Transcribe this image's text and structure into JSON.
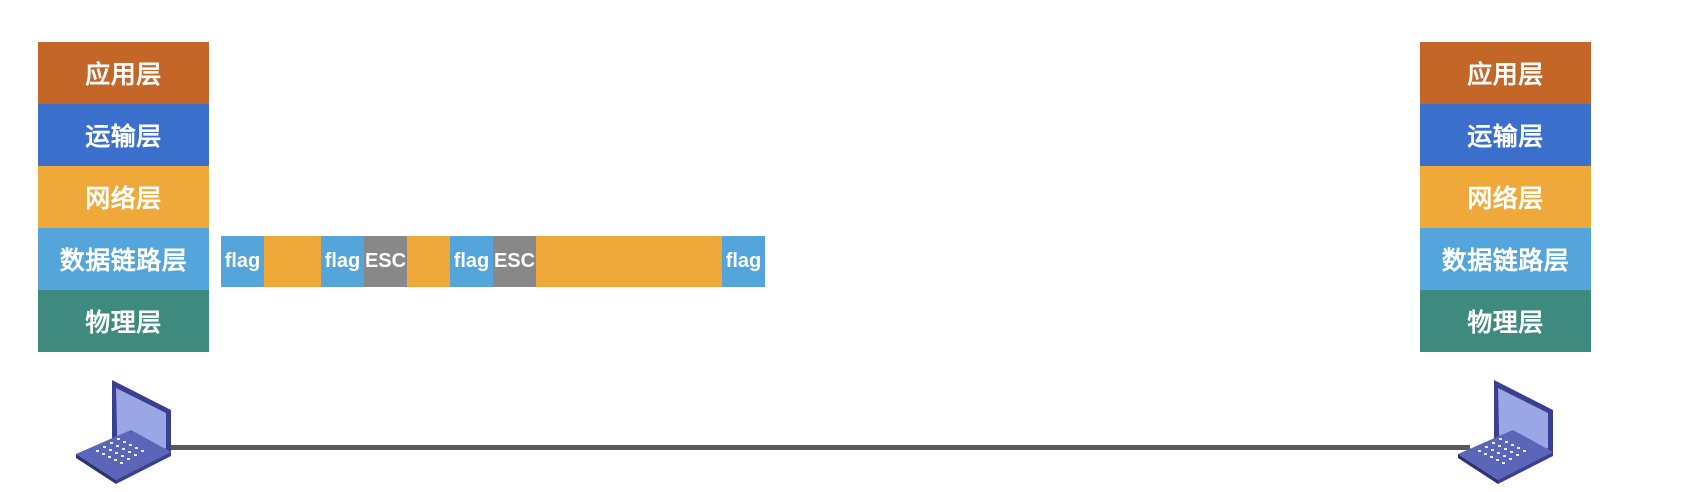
{
  "left_stack": {
    "layers": [
      "应用层",
      "运输层",
      "网络层",
      "数据链路层",
      "物理层"
    ]
  },
  "right_stack": {
    "layers": [
      "应用层",
      "运输层",
      "网络层",
      "数据链路层",
      "物理层"
    ]
  },
  "frame": {
    "segments": [
      {
        "type": "flag",
        "label": "flag"
      },
      {
        "type": "data",
        "label": ""
      },
      {
        "type": "flag",
        "label": "flag"
      },
      {
        "type": "esc",
        "label": "ESC"
      },
      {
        "type": "data",
        "label": ""
      },
      {
        "type": "flag",
        "label": "flag"
      },
      {
        "type": "esc",
        "label": "ESC"
      },
      {
        "type": "data",
        "label": ""
      },
      {
        "type": "flag",
        "label": "flag"
      }
    ]
  },
  "colors": {
    "application": "#c46628",
    "transport": "#3a70cc",
    "network": "#eea93a",
    "datalink": "#53a5dc",
    "physical": "#3f8a7f",
    "esc": "#888888",
    "link": "#5a5a5a"
  },
  "icons": {
    "left_host": "laptop-icon",
    "right_host": "laptop-icon"
  }
}
